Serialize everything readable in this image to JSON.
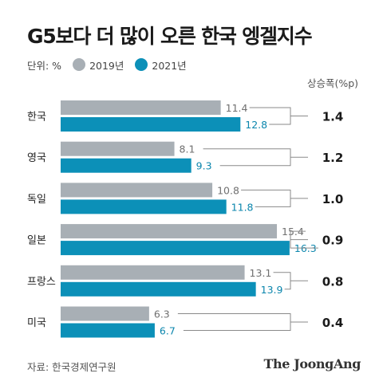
{
  "title": "G5보다 더 많이 오른 한국 엥겔지수",
  "unit_label": "단위: %",
  "source": "자료: 한국경제연구원",
  "brand": "The JoongAng",
  "colors": {
    "y2019": "#a8afb5",
    "y2021": "#0c90b8",
    "text2021": "#0b86ad",
    "connector": "#8a8a8a"
  },
  "chart_data": {
    "type": "bar",
    "orientation": "horizontal",
    "categories": [
      "한국",
      "영국",
      "독일",
      "일본",
      "프랑스",
      "미국"
    ],
    "series": [
      {
        "name": "2019년",
        "values": [
          11.4,
          8.1,
          10.8,
          15.4,
          13.1,
          6.3
        ]
      },
      {
        "name": "2021년",
        "values": [
          12.8,
          9.3,
          11.8,
          16.3,
          13.9,
          6.7
        ]
      }
    ],
    "extra_column": {
      "title": "상승폭(%p)",
      "values": [
        "1.4",
        "1.2",
        "1.0",
        "0.9",
        "0.8",
        "0.4"
      ]
    },
    "legend_position": "top-left",
    "grid": false
  }
}
